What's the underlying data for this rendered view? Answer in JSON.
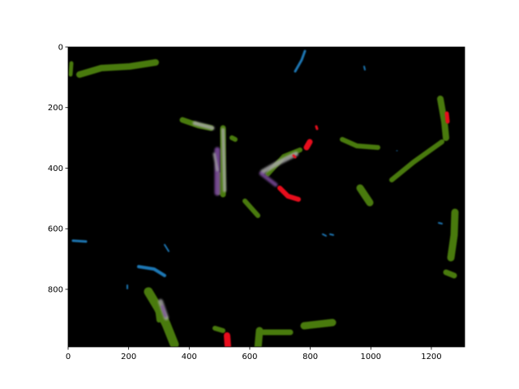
{
  "image_panel": {
    "background_color": "#000000",
    "x_range": [
      0,
      1310
    ],
    "y_range": [
      0,
      990
    ],
    "x_ticks": [
      0,
      200,
      400,
      600,
      800,
      1000,
      1200
    ],
    "y_ticks": [
      0,
      200,
      400,
      600,
      800
    ],
    "x_tick_labels": [
      "0",
      "200",
      "400",
      "600",
      "800",
      "1000",
      "1200"
    ],
    "y_tick_labels": [
      "0",
      "200",
      "400",
      "600",
      "800"
    ],
    "colors": {
      "green": "#4a7a10",
      "blue": "#1f77b4",
      "red": "#e8101e",
      "purple": "#7a4a9a",
      "gray_overlay": "#a8a8a8"
    }
  }
}
